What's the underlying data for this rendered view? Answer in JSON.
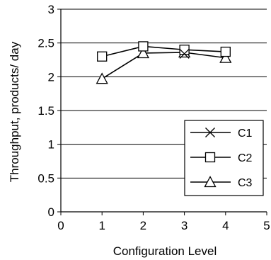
{
  "chart_data": {
    "type": "line",
    "xlabel": "Configuration Level",
    "ylabel": "Throughput, products/ day",
    "xlim": [
      0,
      5
    ],
    "ylim": [
      0,
      3
    ],
    "xticks": [
      "0",
      "1",
      "2",
      "3",
      "4",
      "5"
    ],
    "yticks": [
      "0",
      "0.5",
      "1",
      "1.5",
      "2",
      "2.5",
      "3"
    ],
    "grid": "horizontal",
    "legend_position": "lower-right",
    "x": [
      1,
      2,
      3,
      4
    ],
    "series": [
      {
        "name": "C1",
        "marker": "x",
        "values": [
          null,
          null,
          2.34,
          null
        ]
      },
      {
        "name": "C2",
        "marker": "square",
        "values": [
          2.3,
          2.45,
          2.4,
          2.37
        ]
      },
      {
        "name": "C3",
        "marker": "triangle",
        "values": [
          1.97,
          2.35,
          2.36,
          2.28
        ]
      }
    ]
  }
}
